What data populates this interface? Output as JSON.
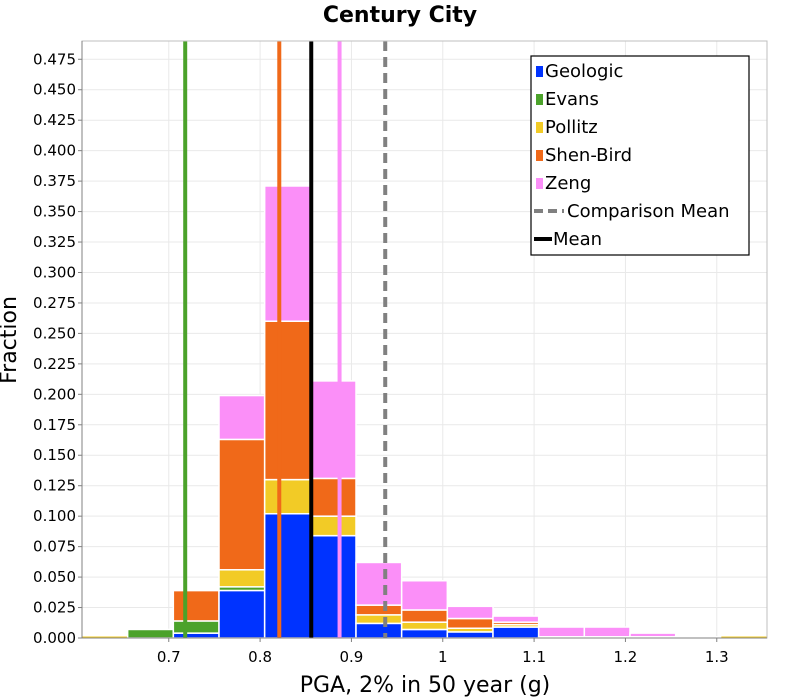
{
  "chart_data": {
    "type": "bar",
    "title": "Century City",
    "xlabel": "PGA, 2% in 50 year (g)",
    "ylabel": "Fraction",
    "xlim": [
      0.605,
      1.355
    ],
    "ylim": [
      0,
      0.49
    ],
    "x_ticks": [
      "0.7",
      "0.8",
      "0.9",
      "1",
      "1.1",
      "1.2",
      "1.3"
    ],
    "x_tick_values": [
      0.7,
      0.8,
      0.9,
      1.0,
      1.1,
      1.2,
      1.3
    ],
    "y_ticks": [
      "0.000",
      "0.025",
      "0.050",
      "0.075",
      "0.100",
      "0.125",
      "0.150",
      "0.175",
      "0.200",
      "0.225",
      "0.250",
      "0.275",
      "0.300",
      "0.325",
      "0.350",
      "0.375",
      "0.400",
      "0.425",
      "0.450",
      "0.475"
    ],
    "grid": true,
    "stacked": true,
    "legend_position": "top-right",
    "bin_centers": [
      0.63,
      0.68,
      0.73,
      0.78,
      0.83,
      0.88,
      0.93,
      0.98,
      1.03,
      1.08,
      1.13,
      1.18,
      1.23,
      1.28,
      1.33
    ],
    "bin_width": 0.05,
    "series": [
      {
        "name": "Geologic",
        "color": "#0033ff",
        "values": [
          0,
          0,
          0.004,
          0.039,
          0.102,
          0.084,
          0.012,
          0.007,
          0.005,
          0.009,
          0,
          0,
          0,
          0,
          0
        ]
      },
      {
        "name": "Evans",
        "color": "#4ba22a",
        "values": [
          0,
          0.007,
          0.01,
          0.003,
          0,
          0,
          0,
          0,
          0,
          0,
          0,
          0,
          0,
          0,
          0
        ]
      },
      {
        "name": "Pollitz",
        "color": "#f2cb26",
        "values": [
          0,
          0,
          0,
          0.014,
          0.028,
          0.016,
          0.007,
          0.006,
          0.003,
          0.002,
          0.001,
          0.001,
          0.001,
          0.001,
          0
        ]
      },
      {
        "name": "Shen-Bird",
        "color": "#f06919",
        "values": [
          0,
          0,
          0.025,
          0.107,
          0.13,
          0.031,
          0.008,
          0.01,
          0.008,
          0.002,
          0,
          0,
          0,
          0,
          0
        ]
      },
      {
        "name": "Zeng",
        "color": "#fb8ff8",
        "values": [
          0,
          0,
          0.001,
          0.036,
          0.111,
          0.08,
          0.035,
          0.024,
          0.01,
          0.005,
          0.008,
          0.008,
          0.003,
          0,
          0
        ]
      }
    ],
    "vertical_lines": [
      {
        "label": "Evans",
        "x": 0.718,
        "color": "#4ba22a",
        "style": "solid"
      },
      {
        "label": "Shen-Bird",
        "x": 0.821,
        "color": "#f06919",
        "style": "solid"
      },
      {
        "label": "Mean",
        "x": 0.856,
        "color": "#000000",
        "style": "solid"
      },
      {
        "label": "Zeng",
        "x": 0.887,
        "color": "#fb8ff8",
        "style": "solid"
      },
      {
        "label": "Comparison Mean",
        "x": 0.937,
        "color": "#808080",
        "style": "dashed"
      }
    ],
    "legend": [
      {
        "label": "Geologic",
        "kind": "box",
        "color": "#0033ff"
      },
      {
        "label": "Evans",
        "kind": "box",
        "color": "#4ba22a"
      },
      {
        "label": "Pollitz",
        "kind": "box",
        "color": "#f2cb26"
      },
      {
        "label": "Shen-Bird",
        "kind": "box",
        "color": "#f06919"
      },
      {
        "label": "Zeng",
        "kind": "box",
        "color": "#fb8ff8"
      },
      {
        "label": "Comparison Mean",
        "kind": "dashed",
        "color": "#808080"
      },
      {
        "label": "Mean",
        "kind": "line",
        "color": "#000000"
      }
    ]
  }
}
